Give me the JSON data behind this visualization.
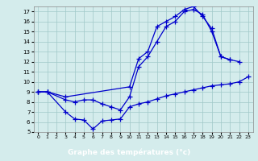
{
  "xlabel": "Graphe des températures (°c)",
  "background_color": "#d4ecec",
  "grid_color": "#a0c8c8",
  "line_color": "#0000cc",
  "xlim": [
    -0.5,
    23.5
  ],
  "ylim": [
    5,
    17.5
  ],
  "xtick_labels": [
    "0",
    "1",
    "2",
    "3",
    "4",
    "5",
    "6",
    "7",
    "8",
    "9",
    "10",
    "11",
    "12",
    "13",
    "14",
    "15",
    "16",
    "17",
    "18",
    "19",
    "20",
    "21",
    "22",
    "23"
  ],
  "xtick_vals": [
    0,
    1,
    2,
    3,
    4,
    5,
    6,
    7,
    8,
    9,
    10,
    11,
    12,
    13,
    14,
    15,
    16,
    17,
    18,
    19,
    20,
    21,
    22,
    23
  ],
  "ytick_vals": [
    5,
    6,
    7,
    8,
    9,
    10,
    11,
    12,
    13,
    14,
    15,
    16,
    17
  ],
  "line1_x": [
    0,
    1,
    3,
    10,
    11,
    12,
    13,
    14,
    15,
    16,
    17,
    18,
    19,
    20,
    21,
    22,
    23
  ],
  "line1_y": [
    9,
    9,
    8.5,
    9.5,
    12.3,
    13.0,
    15.5,
    16.0,
    16.5,
    17.2,
    17.5,
    16.5,
    15.3,
    12.5,
    12.2,
    12.0,
    null
  ],
  "line2_x": [
    0,
    1,
    3,
    4,
    5,
    6,
    7,
    8,
    9,
    10,
    11,
    12,
    13,
    14,
    15,
    16,
    17,
    18,
    19,
    20,
    21
  ],
  "line2_y": [
    9,
    9,
    8.2,
    8.0,
    8.2,
    8.2,
    7.8,
    7.5,
    7.2,
    8.5,
    11.5,
    12.5,
    14.0,
    15.5,
    16.0,
    17.0,
    17.2,
    16.7,
    15.0,
    12.5,
    12.2
  ],
  "line3_x": [
    0,
    1,
    3,
    4,
    5,
    6,
    7,
    8,
    9,
    10,
    11,
    12,
    13,
    14,
    15,
    16,
    17,
    18,
    19,
    20,
    21,
    22,
    23
  ],
  "line3_y": [
    9,
    9,
    7.0,
    6.3,
    6.2,
    5.3,
    6.1,
    6.2,
    6.3,
    7.5,
    7.8,
    8.0,
    8.3,
    8.6,
    8.8,
    9.0,
    9.2,
    9.4,
    9.6,
    9.7,
    9.8,
    10.0,
    10.5
  ]
}
